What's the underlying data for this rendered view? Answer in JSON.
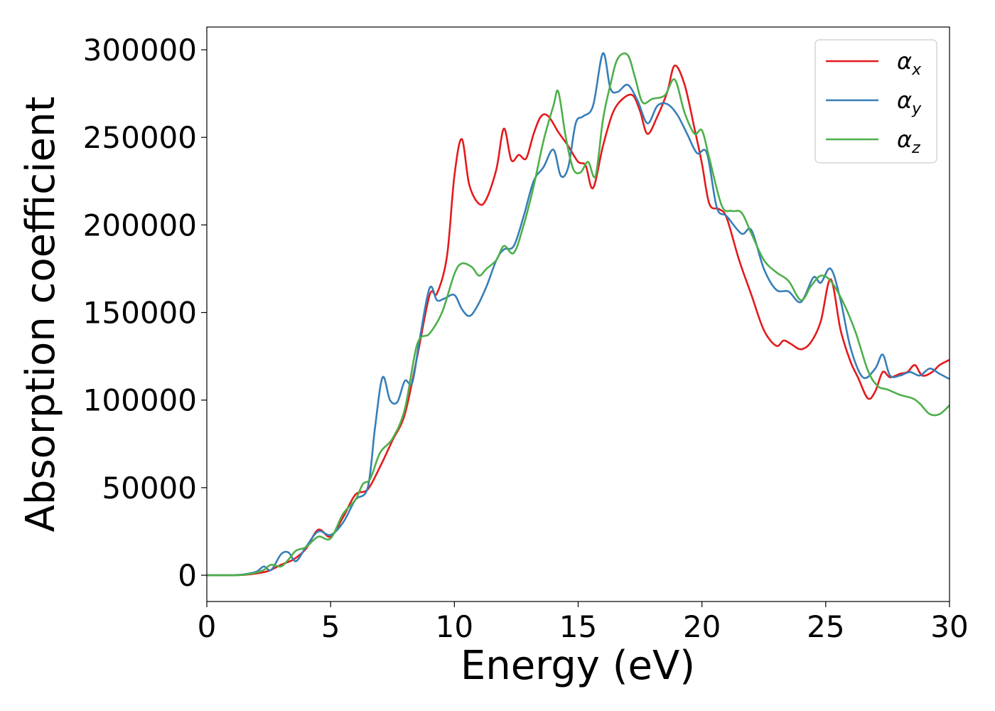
{
  "chart_data": {
    "type": "line",
    "xlabel": "Energy (eV)",
    "ylabel": "Absorption coefficient",
    "xlim": [
      0,
      30
    ],
    "ylim": [
      -15000,
      313000
    ],
    "x_ticks": [
      "0",
      "5",
      "10",
      "15",
      "20",
      "25",
      "30"
    ],
    "y_ticks": [
      "0",
      "50000",
      "100000",
      "150000",
      "200000",
      "250000",
      "300000"
    ],
    "grid": false,
    "legend_position": "top-right",
    "series": [
      {
        "name": "α",
        "name_sub": "x",
        "color": "#e41a1c",
        "x": [
          0,
          1,
          1.5,
          2,
          2.5,
          3,
          3.5,
          4,
          4.5,
          5,
          5.5,
          6,
          6.5,
          7,
          7.5,
          8,
          8.5,
          9,
          9.3,
          9.7,
          10,
          10.3,
          10.6,
          11,
          11.3,
          11.7,
          12,
          12.3,
          12.6,
          12.9,
          13.2,
          13.5,
          13.8,
          14.2,
          14.6,
          15,
          15.3,
          15.6,
          16,
          16.4,
          16.8,
          17.2,
          17.5,
          17.8,
          18.2,
          18.6,
          18.9,
          19.3,
          19.7,
          20,
          20.3,
          20.7,
          21,
          21.5,
          22,
          22.5,
          23,
          23.3,
          23.6,
          24,
          24.4,
          24.8,
          25.2,
          25.6,
          26,
          26.3,
          26.7,
          27,
          27.3,
          27.6,
          28,
          28.3,
          28.6,
          28.9,
          29.3,
          29.6,
          30
        ],
        "values": [
          0,
          0,
          200,
          1000,
          2500,
          6000,
          9000,
          15000,
          26000,
          22000,
          33000,
          46000,
          49000,
          62000,
          77000,
          92000,
          125000,
          160000,
          161000,
          182000,
          228000,
          249000,
          223000,
          212000,
          215000,
          232000,
          255000,
          237000,
          240000,
          238000,
          252000,
          262000,
          262000,
          253000,
          245000,
          236000,
          234000,
          221000,
          245000,
          264000,
          272000,
          274000,
          265000,
          252000,
          262000,
          276000,
          291000,
          280000,
          255000,
          235000,
          212000,
          209000,
          204000,
          180000,
          160000,
          140000,
          131000,
          134000,
          132000,
          129000,
          133000,
          145000,
          169000,
          140000,
          122000,
          113000,
          101000,
          105000,
          116000,
          113000,
          115000,
          116000,
          120000,
          114000,
          116000,
          120000,
          123000
        ]
      },
      {
        "name": "α",
        "name_sub": "y",
        "color": "#377eb8",
        "x": [
          0,
          1,
          1.5,
          2,
          2.3,
          2.6,
          3,
          3.3,
          3.6,
          4,
          4.5,
          5,
          5.5,
          6,
          6.5,
          6.8,
          7.1,
          7.4,
          7.7,
          8,
          8.3,
          8.6,
          9,
          9.3,
          9.6,
          10,
          10.3,
          10.6,
          10.9,
          11.3,
          11.7,
          12,
          12.4,
          12.8,
          13.2,
          13.6,
          14,
          14.3,
          14.6,
          14.9,
          15.2,
          15.6,
          16,
          16.3,
          16.6,
          17,
          17.4,
          17.8,
          18.2,
          18.6,
          19,
          19.4,
          19.8,
          20.2,
          20.6,
          21,
          21.6,
          22,
          22.5,
          23,
          23.5,
          24,
          24.5,
          24.8,
          25.2,
          25.6,
          26,
          26.5,
          27,
          27.3,
          27.6,
          28,
          28.4,
          28.8,
          29.2,
          29.6,
          30
        ],
        "values": [
          0,
          0,
          500,
          2000,
          5000,
          3000,
          12000,
          13000,
          8000,
          16000,
          25000,
          23000,
          30000,
          43000,
          50000,
          85000,
          113000,
          100000,
          99000,
          111000,
          110000,
          135000,
          164000,
          157000,
          158000,
          160000,
          152000,
          148000,
          153000,
          165000,
          180000,
          186000,
          188000,
          205000,
          225000,
          233000,
          243000,
          228000,
          233000,
          258000,
          262000,
          268000,
          298000,
          278000,
          276000,
          280000,
          271000,
          258000,
          268000,
          269000,
          263000,
          252000,
          241000,
          241000,
          210000,
          205000,
          195000,
          197000,
          175000,
          163000,
          162000,
          156000,
          170000,
          167000,
          175000,
          157000,
          130000,
          113000,
          118000,
          126000,
          114000,
          114000,
          116000,
          114000,
          118000,
          115000,
          112000
        ]
      },
      {
        "name": "α",
        "name_sub": "z",
        "color": "#4daf4a",
        "x": [
          0,
          1,
          1.5,
          2,
          2.3,
          2.6,
          3,
          3.3,
          3.6,
          4,
          4.5,
          5,
          5.5,
          6,
          6.3,
          6.6,
          7,
          7.5,
          8,
          8.5,
          9,
          9.5,
          10,
          10.3,
          10.7,
          11,
          11.3,
          11.7,
          12,
          12.4,
          12.8,
          13.2,
          13.6,
          14,
          14.2,
          14.5,
          14.8,
          15.1,
          15.4,
          15.7,
          16,
          16.3,
          16.6,
          17,
          17.3,
          17.6,
          18,
          18.5,
          18.9,
          19.3,
          19.7,
          20,
          20.3,
          20.8,
          21.2,
          21.6,
          22,
          22.5,
          23,
          23.5,
          24,
          24.4,
          24.8,
          25.2,
          25.7,
          26.2,
          26.7,
          27.1,
          27.5,
          28,
          28.5,
          28.8,
          29.2,
          29.6,
          30
        ],
        "values": [
          0,
          0,
          300,
          1500,
          3000,
          6000,
          5000,
          9000,
          14000,
          16000,
          22000,
          21000,
          35000,
          43000,
          52000,
          55000,
          70000,
          78000,
          95000,
          132000,
          138000,
          150000,
          172000,
          178000,
          176000,
          171000,
          175000,
          180000,
          188000,
          184000,
          200000,
          222000,
          248000,
          268000,
          276000,
          250000,
          232000,
          230000,
          236000,
          228000,
          260000,
          280000,
          295000,
          297000,
          284000,
          270000,
          272000,
          274000,
          283000,
          264000,
          252000,
          254000,
          238000,
          211000,
          208000,
          207000,
          195000,
          180000,
          173000,
          168000,
          157000,
          165000,
          171000,
          168000,
          156000,
          139000,
          117000,
          108000,
          106000,
          103000,
          101000,
          98000,
          92000,
          92000,
          97000
        ]
      }
    ]
  }
}
